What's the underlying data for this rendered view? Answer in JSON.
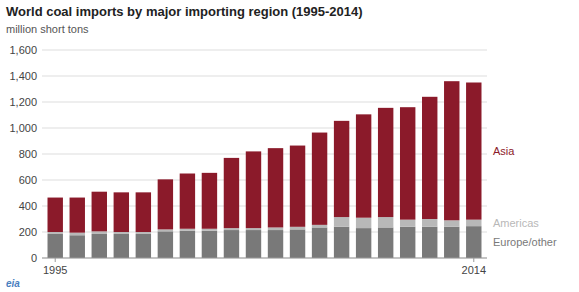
{
  "chart_data": {
    "type": "bar",
    "stacked": true,
    "title": "World coal imports by major importing region (1995-2014)",
    "subtitle": "million short tons",
    "annotations": [
      "eia"
    ],
    "x": [
      1995,
      1996,
      1997,
      1998,
      1999,
      2000,
      2001,
      2002,
      2003,
      2004,
      2005,
      2006,
      2007,
      2008,
      2009,
      2010,
      2011,
      2012,
      2013,
      2014
    ],
    "xlim": [
      1994.4,
      2014.6
    ],
    "xticks": [
      1995,
      2014
    ],
    "ylim": [
      0,
      1600
    ],
    "yticks": [
      0,
      200,
      400,
      600,
      800,
      {
        "value": 1000,
        "label": "1,000"
      },
      {
        "value": 1200,
        "label": "1,200"
      },
      {
        "value": 1400,
        "label": "1,400"
      },
      {
        "value": 1600,
        "label": "1,600"
      }
    ],
    "grid": true,
    "legend": "right",
    "series": [
      {
        "name": "Europe/other",
        "color": "#797979",
        "values": [
          185,
          175,
          185,
          185,
          185,
          205,
          210,
          210,
          215,
          215,
          215,
          220,
          235,
          240,
          230,
          235,
          240,
          240,
          240,
          245
        ]
      },
      {
        "name": "Americas",
        "color": "#b8b8b8",
        "values": [
          15,
          20,
          20,
          15,
          15,
          15,
          15,
          15,
          15,
          15,
          20,
          20,
          20,
          75,
          80,
          80,
          55,
          60,
          50,
          50
        ]
      },
      {
        "name": "Asia",
        "color": "#8b1a2a",
        "values": [
          265,
          270,
          305,
          305,
          305,
          385,
          425,
          430,
          540,
          590,
          610,
          625,
          710,
          740,
          795,
          840,
          865,
          940,
          1070,
          1055
        ]
      }
    ]
  }
}
